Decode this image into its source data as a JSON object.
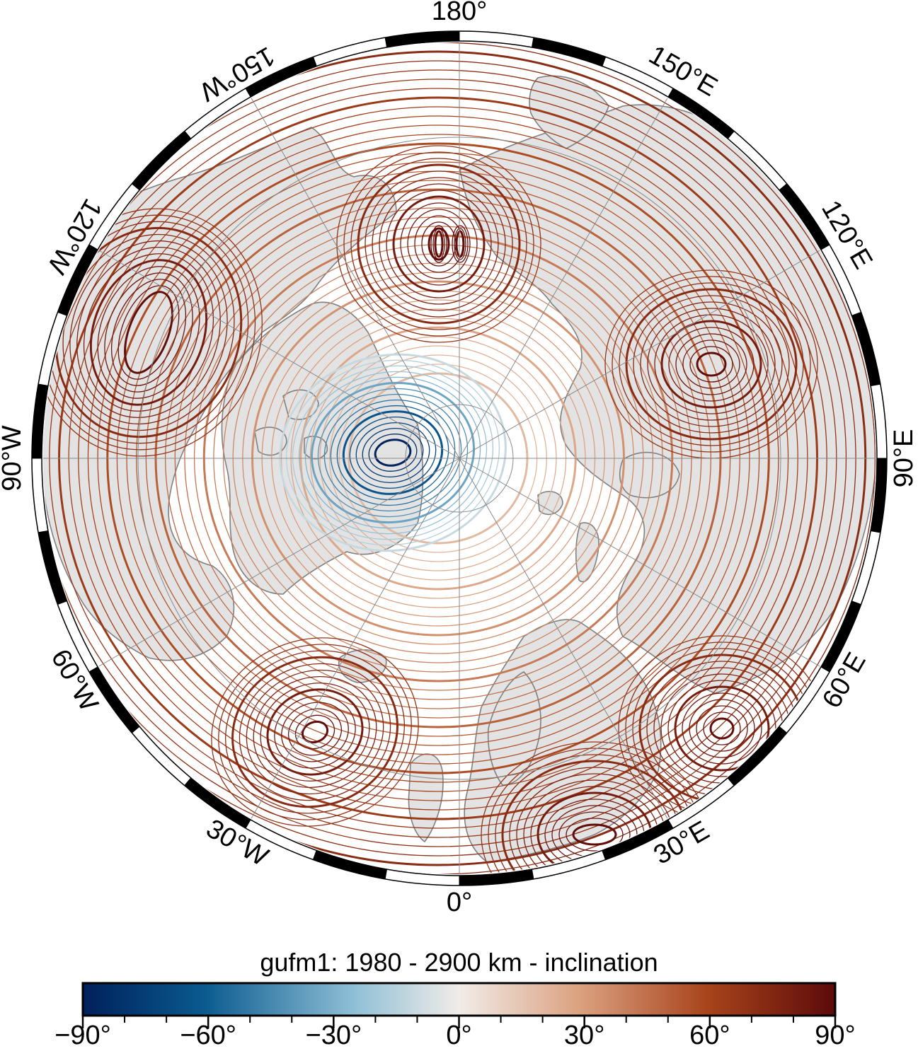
{
  "map": {
    "projection": "north polar stereographic",
    "land_color": "#e3e3e3",
    "coast_color": "#808080",
    "graticule_color": "#8a8a8a",
    "frame_colors": [
      "#000000",
      "#ffffff"
    ],
    "longitude_labels": [
      {
        "text": "180°",
        "lon": 180
      },
      {
        "text": "150°E",
        "lon": 150
      },
      {
        "text": "120°E",
        "lon": 120
      },
      {
        "text": "90°E",
        "lon": 90
      },
      {
        "text": "60°E",
        "lon": 60
      },
      {
        "text": "30°E",
        "lon": 30
      },
      {
        "text": "0°",
        "lon": 0
      },
      {
        "text": "30°W",
        "lon": -30
      },
      {
        "text": "60°W",
        "lon": -60
      },
      {
        "text": "90°W",
        "lon": -90
      },
      {
        "text": "120°W",
        "lon": -120
      },
      {
        "text": "150°W",
        "lon": -150
      }
    ],
    "field": "inclination",
    "contour_interval_deg": 2,
    "bold_contour_interval_deg": 10
  },
  "colorbar": {
    "title": "gufm1: 1980 - 2900 km - inclination",
    "min": -90,
    "max": 90,
    "ticks": [
      {
        "value": -90,
        "label": "−90°"
      },
      {
        "value": -60,
        "label": "−60°"
      },
      {
        "value": -30,
        "label": "−30°"
      },
      {
        "value": 0,
        "label": "0°"
      },
      {
        "value": 30,
        "label": "30°"
      },
      {
        "value": 60,
        "label": "60°"
      },
      {
        "value": 90,
        "label": "90°"
      }
    ],
    "minor_tick_step": 10,
    "palette": [
      "#00205b",
      "#0a5a8f",
      "#8fbfd6",
      "#f1ece8",
      "#dba180",
      "#a8441c",
      "#5c0a0a"
    ]
  }
}
